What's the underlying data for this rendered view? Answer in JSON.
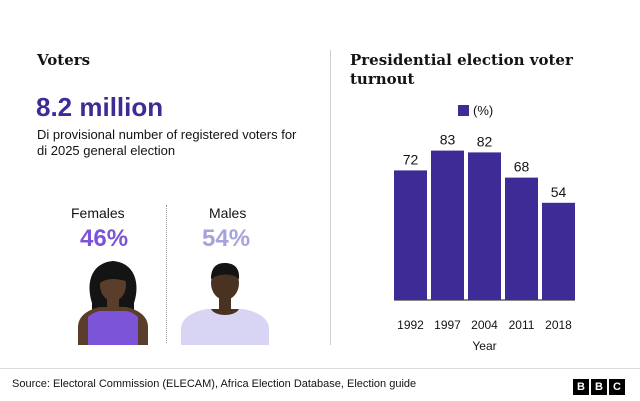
{
  "left": {
    "title": "Voters",
    "big_number": "8.2 million",
    "description": "Di provisional number of registered voters for di 2025 general election",
    "females": {
      "label": "Females",
      "percent": "46%",
      "color": "#7c54d8"
    },
    "males": {
      "label": "Males",
      "percent": "54%",
      "color": "#a6a2dc"
    }
  },
  "right": {
    "title": "Presidential election voter turnout",
    "legend_label": "(%)"
  },
  "chart_data": {
    "type": "bar",
    "categories": [
      "1992",
      "1997",
      "2004",
      "2011",
      "2018"
    ],
    "values": [
      72,
      83,
      82,
      68,
      54
    ],
    "xlabel": "Year",
    "ylabel": "",
    "ylim": [
      0,
      100
    ],
    "legend": "(%)",
    "grid": false,
    "color": "#3f2b96"
  },
  "footer": {
    "source": "Source: Electoral Commission (ELECAM), Africa Election Database, Election guide",
    "logo": [
      "B",
      "B",
      "C"
    ]
  }
}
